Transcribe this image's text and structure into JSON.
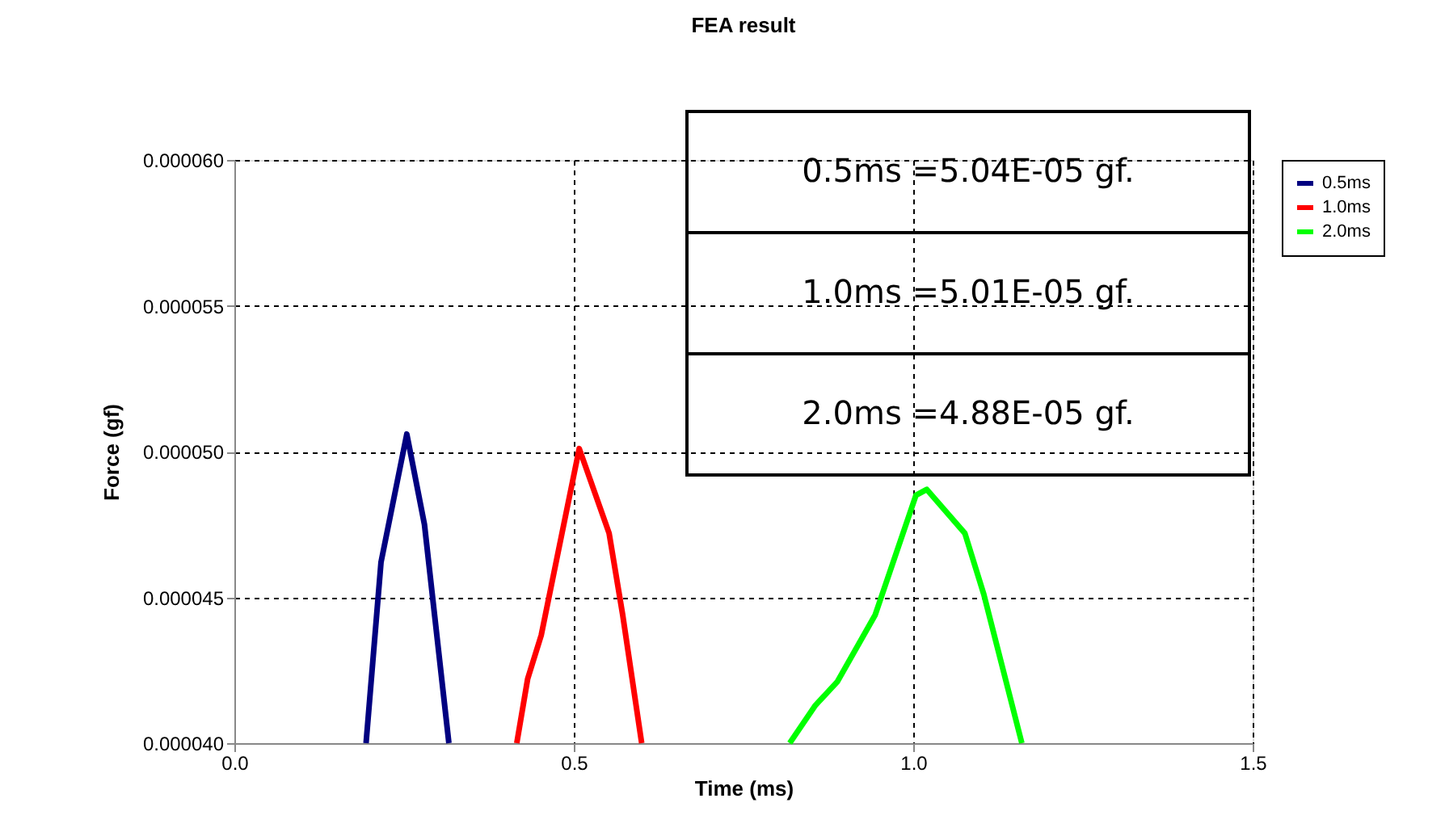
{
  "chart_data": {
    "type": "line",
    "title": "FEA result",
    "xlabel": "Time (ms)",
    "ylabel": "Force (gf)",
    "xlim": [
      0,
      1.5
    ],
    "ylim": [
      4e-05,
      6e-05
    ],
    "xticks": [
      {
        "value": 0,
        "label": "0.0"
      },
      {
        "value": 0.5,
        "label": "0.5"
      },
      {
        "value": 1,
        "label": "1.0"
      },
      {
        "value": 1.5,
        "label": "1.5"
      }
    ],
    "yticks": [
      {
        "value": 4e-05,
        "label": "0.000040"
      },
      {
        "value": 4.5e-05,
        "label": "0.000045"
      },
      {
        "value": 5e-05,
        "label": "0.000050"
      },
      {
        "value": 5.5e-05,
        "label": "0.000055"
      },
      {
        "value": 6e-05,
        "label": "0.000060"
      }
    ],
    "grid": true,
    "legend": "right",
    "line_style": "solid",
    "marker": "none",
    "annotations": [
      "0.5ms =5.04E-05 gf.",
      "1.0ms =5.01E-05 gf.",
      "2.0ms =4.88E-05 gf."
    ],
    "series": [
      {
        "name": "0.5ms",
        "color": "#000080",
        "x": [
          0.194,
          0.216,
          0.254,
          0.28,
          0.316
        ],
        "values": [
          4e-05,
          4.62e-05,
          5.06e-05,
          4.75e-05,
          4e-05
        ]
      },
      {
        "name": "1.0ms",
        "color": "#ff0000",
        "x": [
          0.416,
          0.432,
          0.452,
          0.508,
          0.552,
          0.572,
          0.6
        ],
        "values": [
          4e-05,
          4.22e-05,
          4.37e-05,
          5.01e-05,
          4.72e-05,
          4.44e-05,
          4e-05
        ]
      },
      {
        "name": "2.0ms",
        "color": "#00ff00",
        "x": [
          0.818,
          0.856,
          0.888,
          0.944,
          1.004,
          1.02,
          1.076,
          1.104,
          1.16
        ],
        "values": [
          4e-05,
          4.13e-05,
          4.21e-05,
          4.44e-05,
          4.85e-05,
          4.87e-05,
          4.72e-05,
          4.51e-05,
          4e-05
        ]
      }
    ]
  }
}
